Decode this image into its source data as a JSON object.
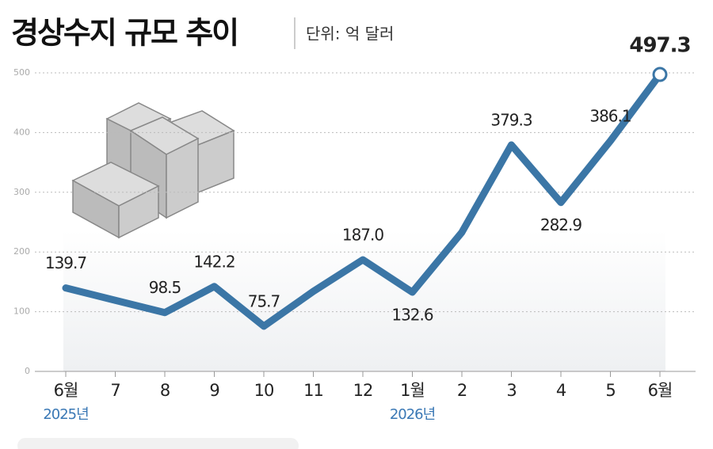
{
  "chart_data": {
    "type": "line",
    "title": "경상수지 규모 추이",
    "unit": "단위: 억 달러",
    "categories": [
      "6월",
      "7",
      "8",
      "9",
      "10",
      "11",
      "12",
      "1월",
      "2",
      "3",
      "4",
      "5",
      "6월"
    ],
    "category_sublabels": [
      "2025년",
      null,
      null,
      null,
      null,
      null,
      null,
      "2026년",
      null,
      null,
      null,
      null,
      null
    ],
    "values": [
      139.7,
      119,
      98.5,
      142.2,
      75.7,
      134,
      187.0,
      132.6,
      233,
      379.3,
      282.9,
      386.1,
      497.3
    ],
    "value_labels": [
      "139.7",
      null,
      "98.5",
      "142.2",
      "75.7",
      null,
      "187.0",
      "132.6",
      null,
      "379.3",
      "282.9",
      "386.1",
      "497.3"
    ],
    "color": "#3b76a6",
    "highlight_color": "#3a8cc8",
    "ylim": [
      0,
      530
    ],
    "yticks": [
      0,
      100,
      200,
      300,
      400,
      500
    ],
    "grid": true
  }
}
